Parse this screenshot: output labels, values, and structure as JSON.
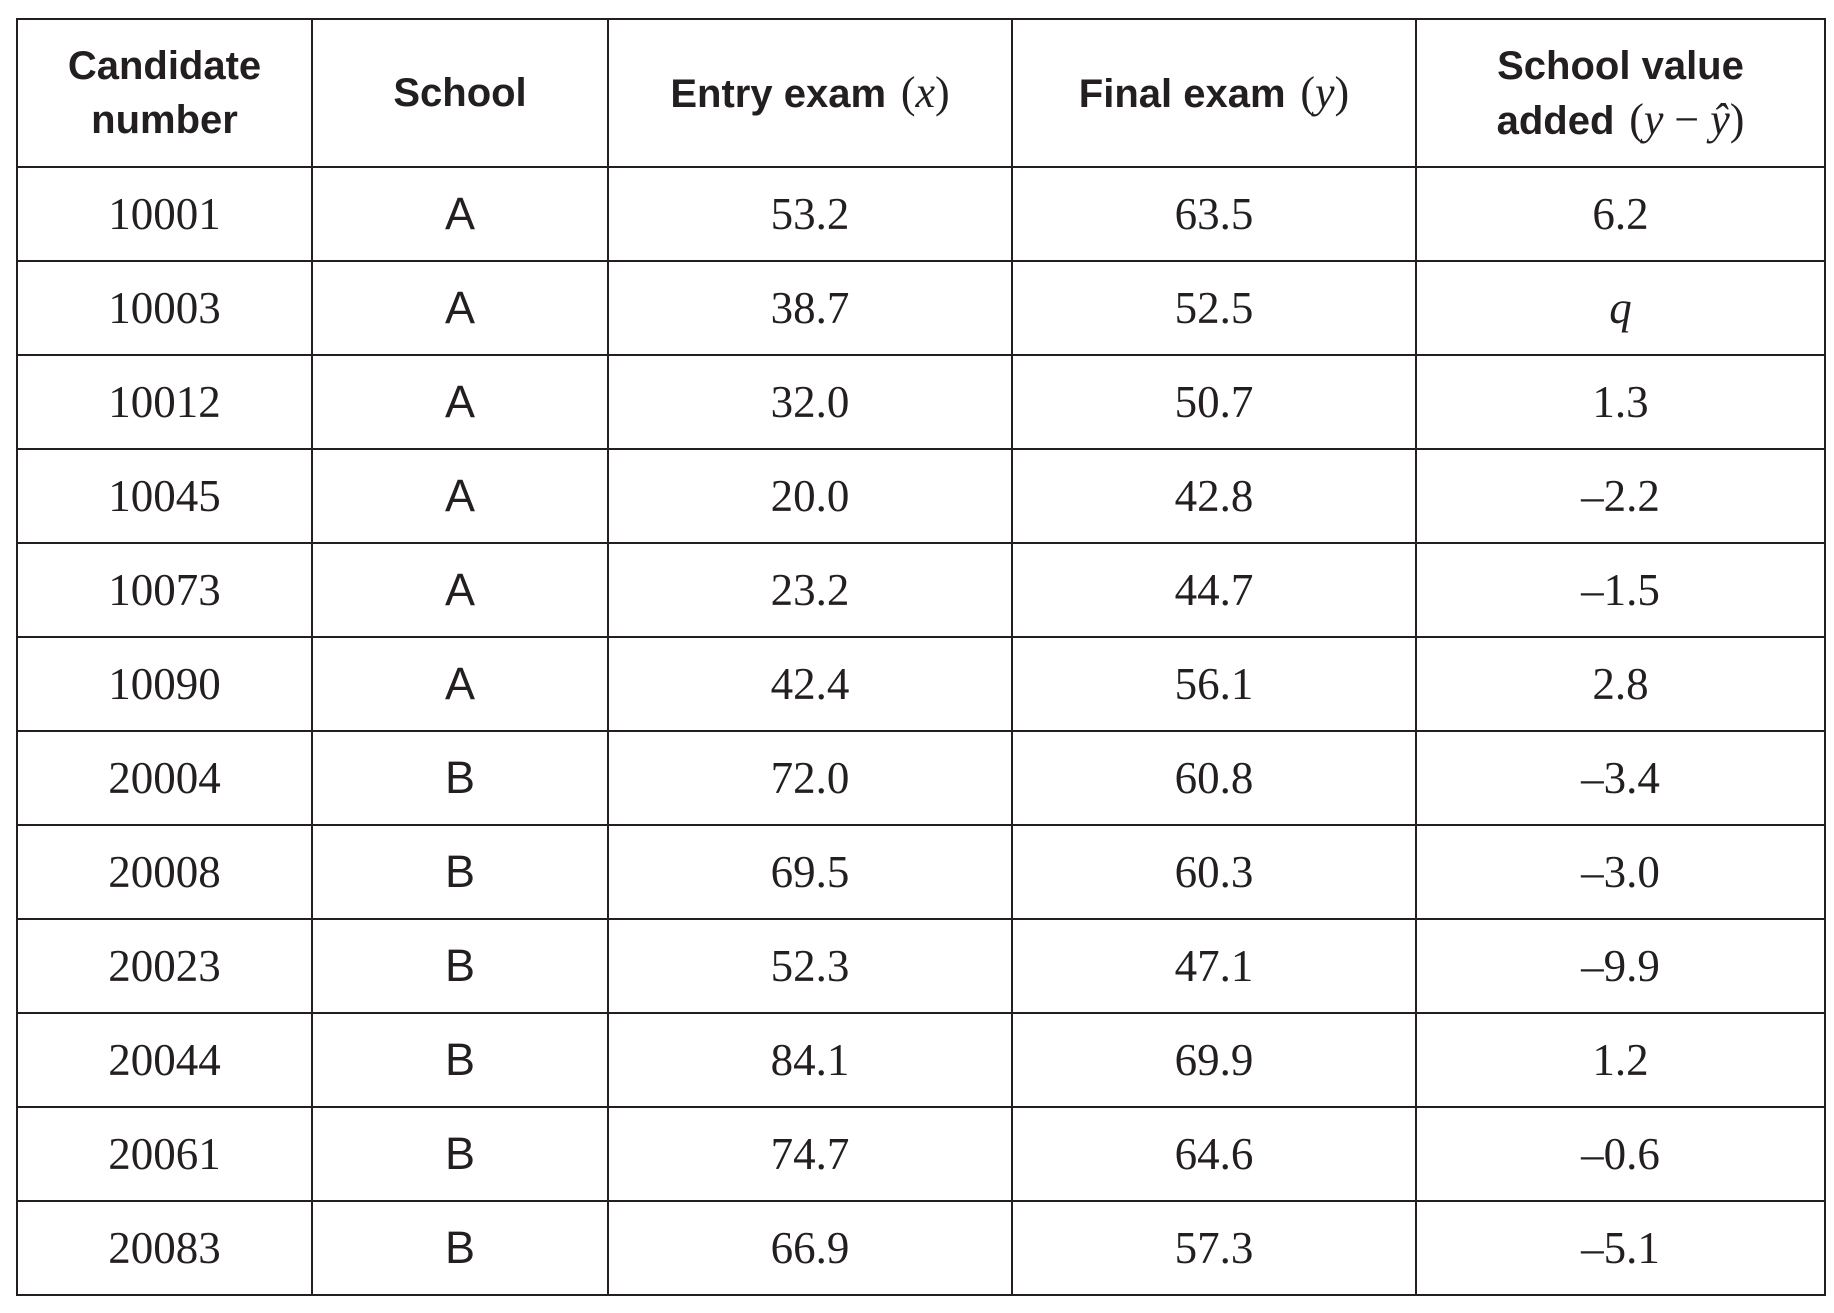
{
  "headers": {
    "candidate_line1": "Candidate",
    "candidate_line2": "number",
    "school": "School",
    "entry_label": "Entry exam",
    "entry_symbol": "(x)",
    "entry_var": "x",
    "final_label": "Final exam",
    "final_symbol": "(y)",
    "final_var": "y",
    "value_line1": "School value",
    "value_line2_label": "added",
    "value_symbol": "(y − ŷ)",
    "value_var_y": "y",
    "value_minus": "−",
    "value_var_yhat": "ŷ"
  },
  "rows": [
    {
      "candidate": "10001",
      "school": "A",
      "entry": "53.2",
      "final": "63.5",
      "value_added": "6.2"
    },
    {
      "candidate": "10003",
      "school": "A",
      "entry": "38.7",
      "final": "52.5",
      "value_added": "q"
    },
    {
      "candidate": "10012",
      "school": "A",
      "entry": "32.0",
      "final": "50.7",
      "value_added": "1.3"
    },
    {
      "candidate": "10045",
      "school": "A",
      "entry": "20.0",
      "final": "42.8",
      "value_added": "–2.2"
    },
    {
      "candidate": "10073",
      "school": "A",
      "entry": "23.2",
      "final": "44.7",
      "value_added": "–1.5"
    },
    {
      "candidate": "10090",
      "school": "A",
      "entry": "42.4",
      "final": "56.1",
      "value_added": "2.8"
    },
    {
      "candidate": "20004",
      "school": "B",
      "entry": "72.0",
      "final": "60.8",
      "value_added": "–3.4"
    },
    {
      "candidate": "20008",
      "school": "B",
      "entry": "69.5",
      "final": "60.3",
      "value_added": "–3.0"
    },
    {
      "candidate": "20023",
      "school": "B",
      "entry": "52.3",
      "final": "47.1",
      "value_added": "–9.9"
    },
    {
      "candidate": "20044",
      "school": "B",
      "entry": "84.1",
      "final": "69.9",
      "value_added": "1.2"
    },
    {
      "candidate": "20061",
      "school": "B",
      "entry": "74.7",
      "final": "64.6",
      "value_added": "–0.6"
    },
    {
      "candidate": "20083",
      "school": "B",
      "entry": "66.9",
      "final": "57.3",
      "value_added": "–5.1"
    }
  ]
}
